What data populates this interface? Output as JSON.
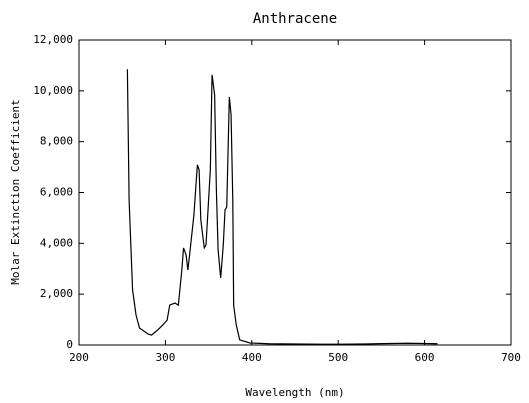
{
  "chart_data": {
    "type": "line",
    "title": "Anthracene",
    "x_label": "Wavelength (nm)",
    "y_label": "Molar Extinction Coefficient",
    "x": [
      256,
      258,
      262,
      266,
      270,
      280,
      284,
      291,
      297,
      302,
      305,
      311,
      315,
      319,
      321,
      324,
      326,
      328,
      333,
      337,
      339,
      341,
      345,
      347,
      349,
      352,
      354,
      357,
      359,
      361,
      364,
      367,
      369,
      371,
      374,
      376,
      378,
      379,
      382,
      386,
      398,
      420,
      450,
      480,
      500,
      530,
      560,
      580,
      600,
      615
    ],
    "values": [
      10850,
      5700,
      2170,
      1180,
      670,
      430,
      390,
      590,
      790,
      980,
      1570,
      1650,
      1570,
      2950,
      3820,
      3540,
      2950,
      3540,
      5120,
      7090,
      6890,
      4920,
      3820,
      3940,
      5120,
      6890,
      10630,
      9840,
      6100,
      3740,
      2640,
      3940,
      5310,
      5430,
      9760,
      9060,
      5710,
      1570,
      790,
      200,
      80,
      50,
      40,
      30,
      30,
      40,
      60,
      70,
      60,
      50
    ],
    "color": "#000000",
    "xlim": [
      200,
      700
    ],
    "xticks": [
      200,
      300,
      400,
      500,
      600,
      700
    ],
    "ylim": [
      0,
      12000
    ],
    "yticks": [
      0,
      {
        "value": 2000,
        "label": "2,000"
      },
      {
        "value": 4000,
        "label": "4,000"
      },
      {
        "value": 6000,
        "label": "6,000"
      },
      {
        "value": 8000,
        "label": "8,000"
      },
      {
        "value": 10000,
        "label": "10,000"
      },
      {
        "value": 12000,
        "label": "12,000"
      }
    ],
    "grid": false
  }
}
